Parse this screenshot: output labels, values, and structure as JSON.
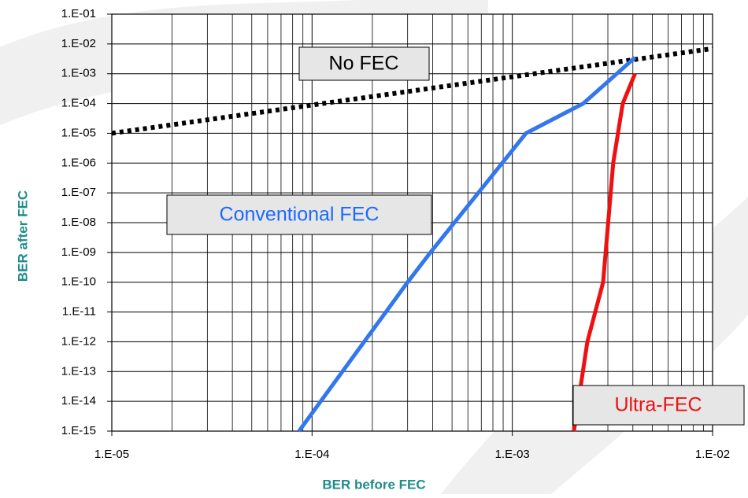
{
  "chart_data": {
    "type": "line",
    "xlabel": "BER before FEC",
    "ylabel": "BER after FEC",
    "xscale": "log",
    "yscale": "log",
    "grid": true,
    "minor_grid": true,
    "xlim": [
      1e-05,
      0.01
    ],
    "ylim": [
      1e-15,
      0.1
    ],
    "xticks": [
      {
        "value": 1e-05,
        "label": "1.E-05"
      },
      {
        "value": 0.0001,
        "label": "1.E-04"
      },
      {
        "value": 0.001,
        "label": "1.E-03"
      },
      {
        "value": 0.01,
        "label": "1.E-02"
      }
    ],
    "yticks": [
      {
        "value": 0.1,
        "label": "1.E-01"
      },
      {
        "value": 0.01,
        "label": "1.E-02"
      },
      {
        "value": 0.001,
        "label": "1.E-03"
      },
      {
        "value": 0.0001,
        "label": "1.E-04"
      },
      {
        "value": 1e-05,
        "label": "1.E-05"
      },
      {
        "value": 1e-06,
        "label": "1.E-06"
      },
      {
        "value": 1e-07,
        "label": "1.E-07"
      },
      {
        "value": 1e-08,
        "label": "1.E-08"
      },
      {
        "value": 1e-09,
        "label": "1.E-09"
      },
      {
        "value": 1e-10,
        "label": "1.E-10"
      },
      {
        "value": 1e-11,
        "label": "1.E-11"
      },
      {
        "value": 1e-12,
        "label": "1.E-12"
      },
      {
        "value": 1e-13,
        "label": "1.E-13"
      },
      {
        "value": 1e-14,
        "label": "1.E-14"
      },
      {
        "value": 1e-15,
        "label": "1.E-15"
      }
    ],
    "series": [
      {
        "color": "#000000",
        "style": "dotted",
        "x": [
          1e-05,
          0.01
        ],
        "values": [
          1e-05,
          0.007
        ]
      },
      {
        "color": "#3377ee",
        "style": "solid",
        "x": [
          8.6e-05,
          0.0003,
          0.00039,
          0.00089,
          0.00117,
          0.00226,
          0.0041
        ],
        "values": [
          1e-15,
          1e-10,
          1e-09,
          1e-06,
          1e-05,
          0.0001,
          0.0035
        ]
      },
      {
        "color": "#ee1111",
        "style": "solid",
        "x": [
          0.00203,
          0.00237,
          0.00284,
          0.00319,
          0.00356,
          0.0041
        ],
        "values": [
          1e-15,
          1e-12,
          1e-10,
          1e-06,
          0.0001,
          0.001
        ]
      }
    ],
    "annotations": [
      {
        "text": "No FEC",
        "color": "#000000"
      },
      {
        "text": "Conventional FEC",
        "color": "#1a6aff"
      },
      {
        "text": "Ultra-FEC",
        "color": "#ee1111"
      }
    ]
  }
}
